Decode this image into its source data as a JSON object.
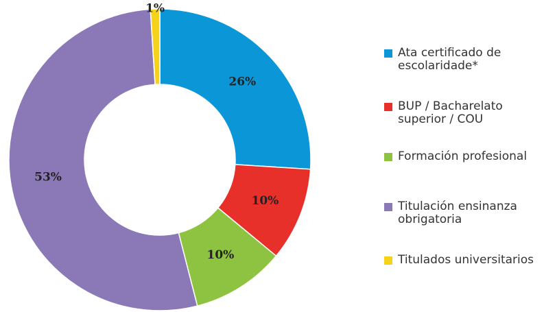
{
  "chart_data": {
    "type": "donut",
    "categories": [
      "Ata certificado de escolaridade*",
      "BUP / Bacharelato superior / COU",
      "Formación profesional",
      "Titulación ensinanza obrigatoria",
      "Titulados universitarios"
    ],
    "values": [
      26,
      10,
      10,
      53,
      1
    ],
    "value_labels": [
      "26%",
      "10%",
      "10%",
      "53%",
      "1%"
    ],
    "colors": [
      "#0b97d7",
      "#e8302a",
      "#8dc340",
      "#8b78b6",
      "#f6d21a"
    ]
  }
}
